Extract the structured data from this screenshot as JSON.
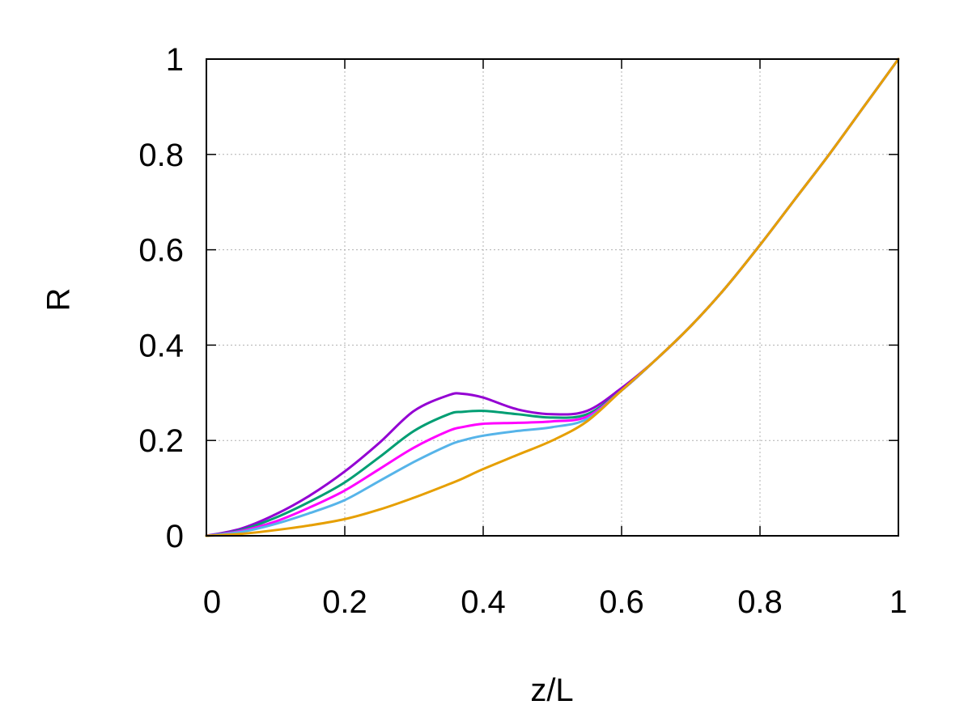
{
  "chart_data": {
    "type": "line",
    "title": "",
    "xlabel": "z/L",
    "ylabel": "R",
    "xlim": [
      0,
      1
    ],
    "ylim": [
      0,
      1
    ],
    "grid": true,
    "legend": "none",
    "x_ticks": [
      "0",
      "0.2",
      "0.4",
      "0.6",
      "0.8",
      "1"
    ],
    "y_ticks": [
      "0",
      "0.2",
      "0.4",
      "0.6",
      "0.8",
      "1"
    ],
    "x": [
      0.0,
      0.05,
      0.1,
      0.15,
      0.2,
      0.25,
      0.3,
      0.35,
      0.37,
      0.4,
      0.45,
      0.5,
      0.55,
      0.6,
      0.65,
      0.7,
      0.75,
      0.8,
      0.85,
      0.9,
      0.95,
      1.0
    ],
    "series": [
      {
        "color": "#9400d3",
        "values": [
          0.0,
          0.015,
          0.045,
          0.085,
          0.135,
          0.195,
          0.262,
          0.295,
          0.298,
          0.29,
          0.265,
          0.255,
          0.262,
          0.31,
          0.37,
          0.44,
          0.52,
          0.61,
          0.705,
          0.8,
          0.9,
          1.0
        ]
      },
      {
        "color": "#009e73",
        "values": [
          0.0,
          0.012,
          0.038,
          0.072,
          0.112,
          0.165,
          0.22,
          0.255,
          0.26,
          0.262,
          0.255,
          0.248,
          0.255,
          0.305,
          0.37,
          0.44,
          0.52,
          0.61,
          0.705,
          0.8,
          0.9,
          1.0
        ]
      },
      {
        "color": "#ff00ff",
        "values": [
          0.0,
          0.01,
          0.03,
          0.06,
          0.095,
          0.14,
          0.185,
          0.22,
          0.228,
          0.235,
          0.237,
          0.24,
          0.25,
          0.305,
          0.37,
          0.44,
          0.52,
          0.61,
          0.705,
          0.8,
          0.9,
          1.0
        ]
      },
      {
        "color": "#56b4e9",
        "values": [
          0.0,
          0.008,
          0.025,
          0.048,
          0.075,
          0.115,
          0.155,
          0.19,
          0.2,
          0.21,
          0.22,
          0.228,
          0.245,
          0.305,
          0.37,
          0.44,
          0.52,
          0.61,
          0.705,
          0.8,
          0.9,
          1.0
        ]
      },
      {
        "color": "#e69f00",
        "values": [
          0.0,
          0.004,
          0.012,
          0.022,
          0.035,
          0.055,
          0.08,
          0.108,
          0.12,
          0.14,
          0.17,
          0.2,
          0.24,
          0.305,
          0.37,
          0.44,
          0.52,
          0.61,
          0.705,
          0.8,
          0.9,
          1.0
        ]
      }
    ]
  }
}
